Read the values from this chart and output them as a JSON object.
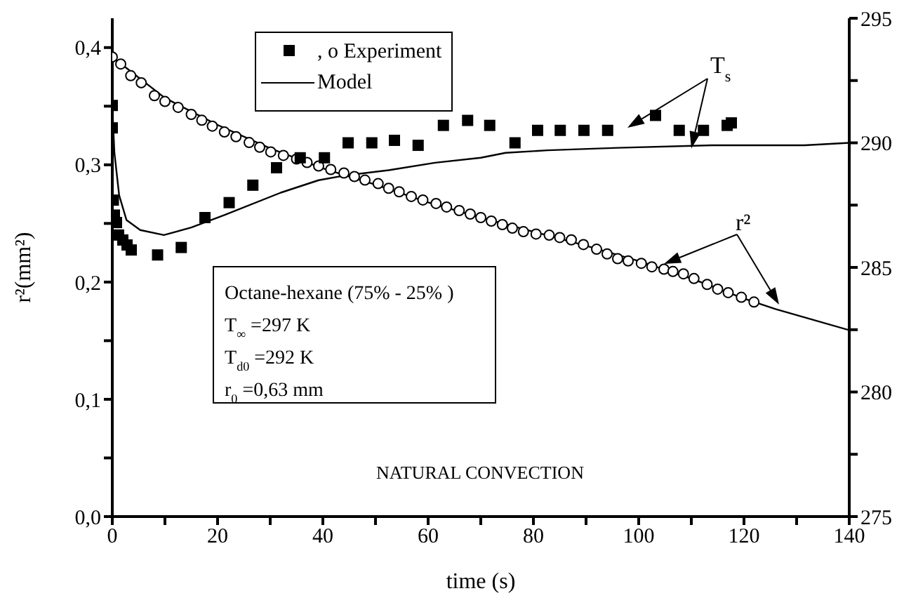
{
  "chart_data": {
    "type": "scatter",
    "xlabel": "time (s)",
    "ylabel": "r²(mm²)",
    "xlim": [
      0,
      140
    ],
    "ylim": [
      0,
      0.425
    ],
    "y2lim": [
      275,
      295
    ],
    "xticks": [
      0,
      {
        "value": 10,
        "label": null
      },
      20,
      {
        "value": 30,
        "label": null
      },
      40,
      {
        "value": 50,
        "label": null
      },
      60,
      {
        "value": 70,
        "label": null
      },
      80,
      {
        "value": 90,
        "label": null
      },
      100,
      {
        "value": 110,
        "label": null
      },
      120,
      {
        "value": 130,
        "label": null
      },
      140
    ],
    "yticks": [
      {
        "value": 0,
        "label": "0,0"
      },
      {
        "value": 0.05,
        "label": null
      },
      {
        "value": 0.1,
        "label": "0,1"
      },
      {
        "value": 0.15,
        "label": null
      },
      {
        "value": 0.2,
        "label": "0,2"
      },
      {
        "value": 0.25,
        "label": null
      },
      {
        "value": 0.3,
        "label": "0,3"
      },
      {
        "value": 0.35,
        "label": null
      },
      {
        "value": 0.4,
        "label": "0,4"
      }
    ],
    "y2ticks": [
      275,
      {
        "value": 277.5,
        "label": null
      },
      280,
      {
        "value": 282.5,
        "label": null
      },
      285,
      {
        "value": 287.5,
        "label": null
      },
      290,
      {
        "value": 292.5,
        "label": null
      },
      295
    ],
    "grid": false,
    "legend": "top",
    "annotations": [
      {
        "text": "T$_{s}$",
        "x": 110,
        "y": 0.314
      },
      "r²",
      "Octane-hexane (75% - 25% )",
      "T$_{∞}$=297 K",
      "T$_{d0}$=292 K",
      "r$_{0}$=0,63 mm",
      "NATURAL CONVECTION"
    ],
    "series": [
      {
        "name": ", o Experiment",
        "marker": "square",
        "color": "#000000",
        "axis": "y2",
        "x": [
          0,
          0,
          0.2,
          0.4,
          0.8,
          1.2,
          2,
          2.8,
          3.6,
          8.6,
          13.1,
          17.6,
          22.2,
          26.7,
          31.2,
          35.7,
          40.3,
          44.8,
          49.3,
          53.6,
          58.1,
          62.9,
          67.5,
          71.7,
          76.5,
          80.8,
          85.1,
          89.6,
          94.1,
          103.2,
          107.7,
          112.3,
          116.8,
          117.6
        ],
        "values": [
          291.5,
          290.6,
          287.7,
          287.1,
          286.8,
          286.3,
          286.1,
          285.9,
          285.7,
          285.5,
          285.8,
          287.0,
          287.6,
          288.3,
          289.0,
          289.4,
          289.4,
          290.0,
          290.0,
          290.1,
          289.9,
          290.7,
          290.9,
          290.7,
          290.0,
          290.5,
          290.5,
          290.5,
          290.5,
          291.1,
          290.5,
          290.5,
          290.7,
          290.8
        ]
      },
      {
        "marker": "circle",
        "color": "#000000",
        "x": [
          0,
          1.6,
          3.5,
          5.5,
          8,
          10,
          12.5,
          15,
          17,
          19,
          21.3,
          23.5,
          26,
          28,
          30.1,
          32.5,
          35,
          37,
          39.2,
          41.5,
          44,
          46,
          48,
          50.5,
          52.5,
          54.5,
          56.8,
          59,
          61.5,
          63.5,
          65.9,
          68,
          70,
          72,
          74.1,
          76,
          78.1,
          80.5,
          83,
          85,
          87.2,
          89.5,
          92,
          94,
          96,
          98,
          100.5,
          102.5,
          104.8,
          106.5,
          108.5,
          110.5,
          113,
          115,
          117,
          119.5,
          121.9
        ],
        "values": [
          0.392,
          0.386,
          0.376,
          0.37,
          0.359,
          0.354,
          0.349,
          0.343,
          0.338,
          0.333,
          0.328,
          0.324,
          0.319,
          0.315,
          0.311,
          0.308,
          0.305,
          0.302,
          0.299,
          0.296,
          0.293,
          0.29,
          0.287,
          0.284,
          0.28,
          0.277,
          0.273,
          0.27,
          0.267,
          0.264,
          0.261,
          0.258,
          0.255,
          0.252,
          0.249,
          0.246,
          0.243,
          0.241,
          0.24,
          0.238,
          0.236,
          0.232,
          0.228,
          0.224,
          0.22,
          0.218,
          0.216,
          0.213,
          0.211,
          0.209,
          0.207,
          0.203,
          0.198,
          0.194,
          0.191,
          0.187,
          0.183
        ]
      },
      {
        "name": "Model",
        "type": "line",
        "marker": "none",
        "color": "#000000",
        "x": [
          0,
          10,
          20,
          30,
          40,
          50,
          60,
          70,
          80,
          90,
          100,
          110,
          120,
          126,
          140
        ],
        "values": [
          0.392,
          0.357,
          0.334,
          0.314,
          0.297,
          0.283,
          0.268,
          0.255,
          0.243,
          0.231,
          0.218,
          0.203,
          0.186,
          0.177,
          0.159
        ]
      },
      {
        "type": "line",
        "marker": "none",
        "color": "#000000",
        "axis": "y2",
        "x": [
          0,
          0.4,
          1.3,
          2.7,
          5.3,
          9.8,
          15,
          21.3,
          32,
          39.2,
          44.5,
          52.5,
          61.3,
          70,
          74.7,
          82.7,
          96,
          113.9,
          131.5,
          140
        ],
        "values": [
          291.5,
          289.6,
          287.9,
          286.9,
          286.5,
          286.3,
          286.6,
          287.1,
          288.0,
          288.5,
          288.7,
          288.9,
          289.2,
          289.4,
          289.6,
          289.7,
          289.8,
          289.9,
          289.9,
          290.0
        ]
      }
    ]
  }
}
